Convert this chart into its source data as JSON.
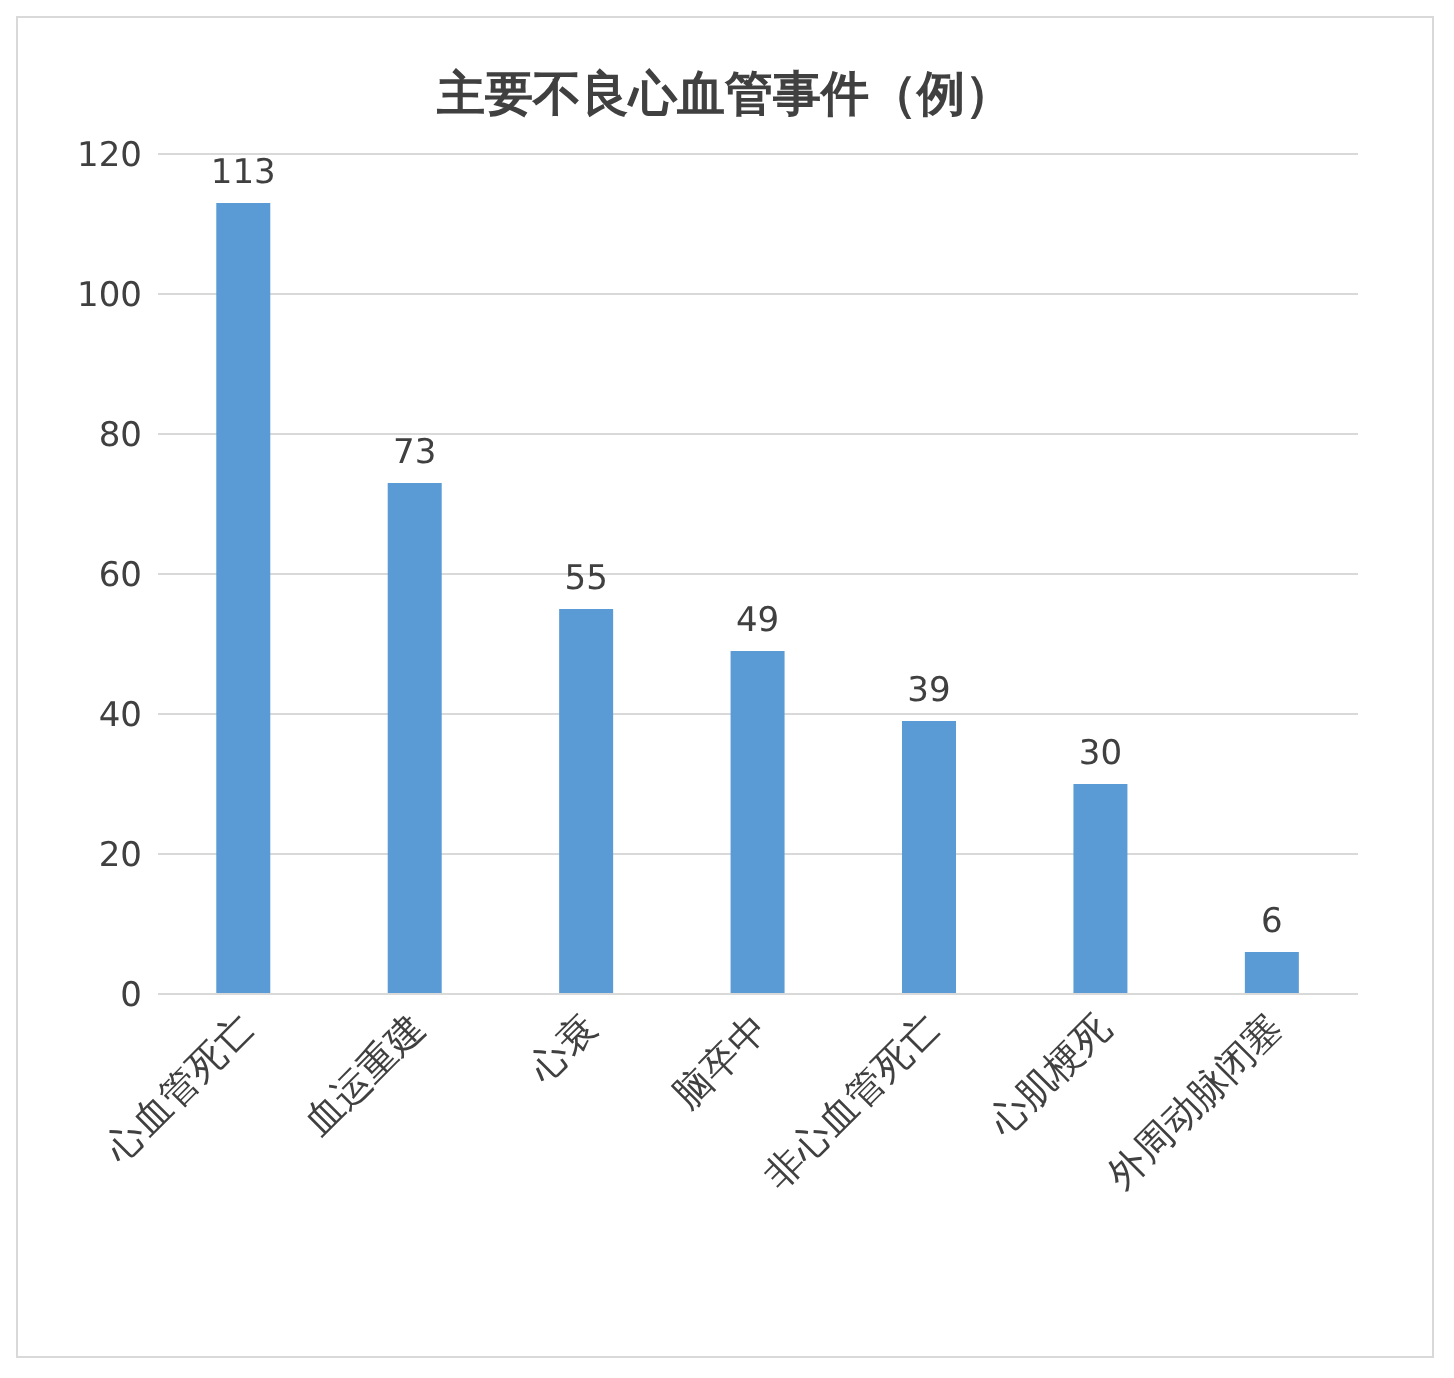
{
  "chart_data": {
    "type": "bar",
    "title": "主要不良心血管事件（例）",
    "categories": [
      "心血管死亡",
      "血运重建",
      "心衰",
      "脑卒中",
      "非心血管死亡",
      "心肌梗死",
      "外周动脉闭塞"
    ],
    "values": [
      113,
      73,
      55,
      49,
      39,
      30,
      6
    ],
    "color": "#5b9bd5",
    "ylim": [
      0,
      120
    ],
    "yticks": [
      0,
      20,
      40,
      60,
      80,
      100,
      120
    ],
    "grid": "y",
    "data_labels": true
  }
}
